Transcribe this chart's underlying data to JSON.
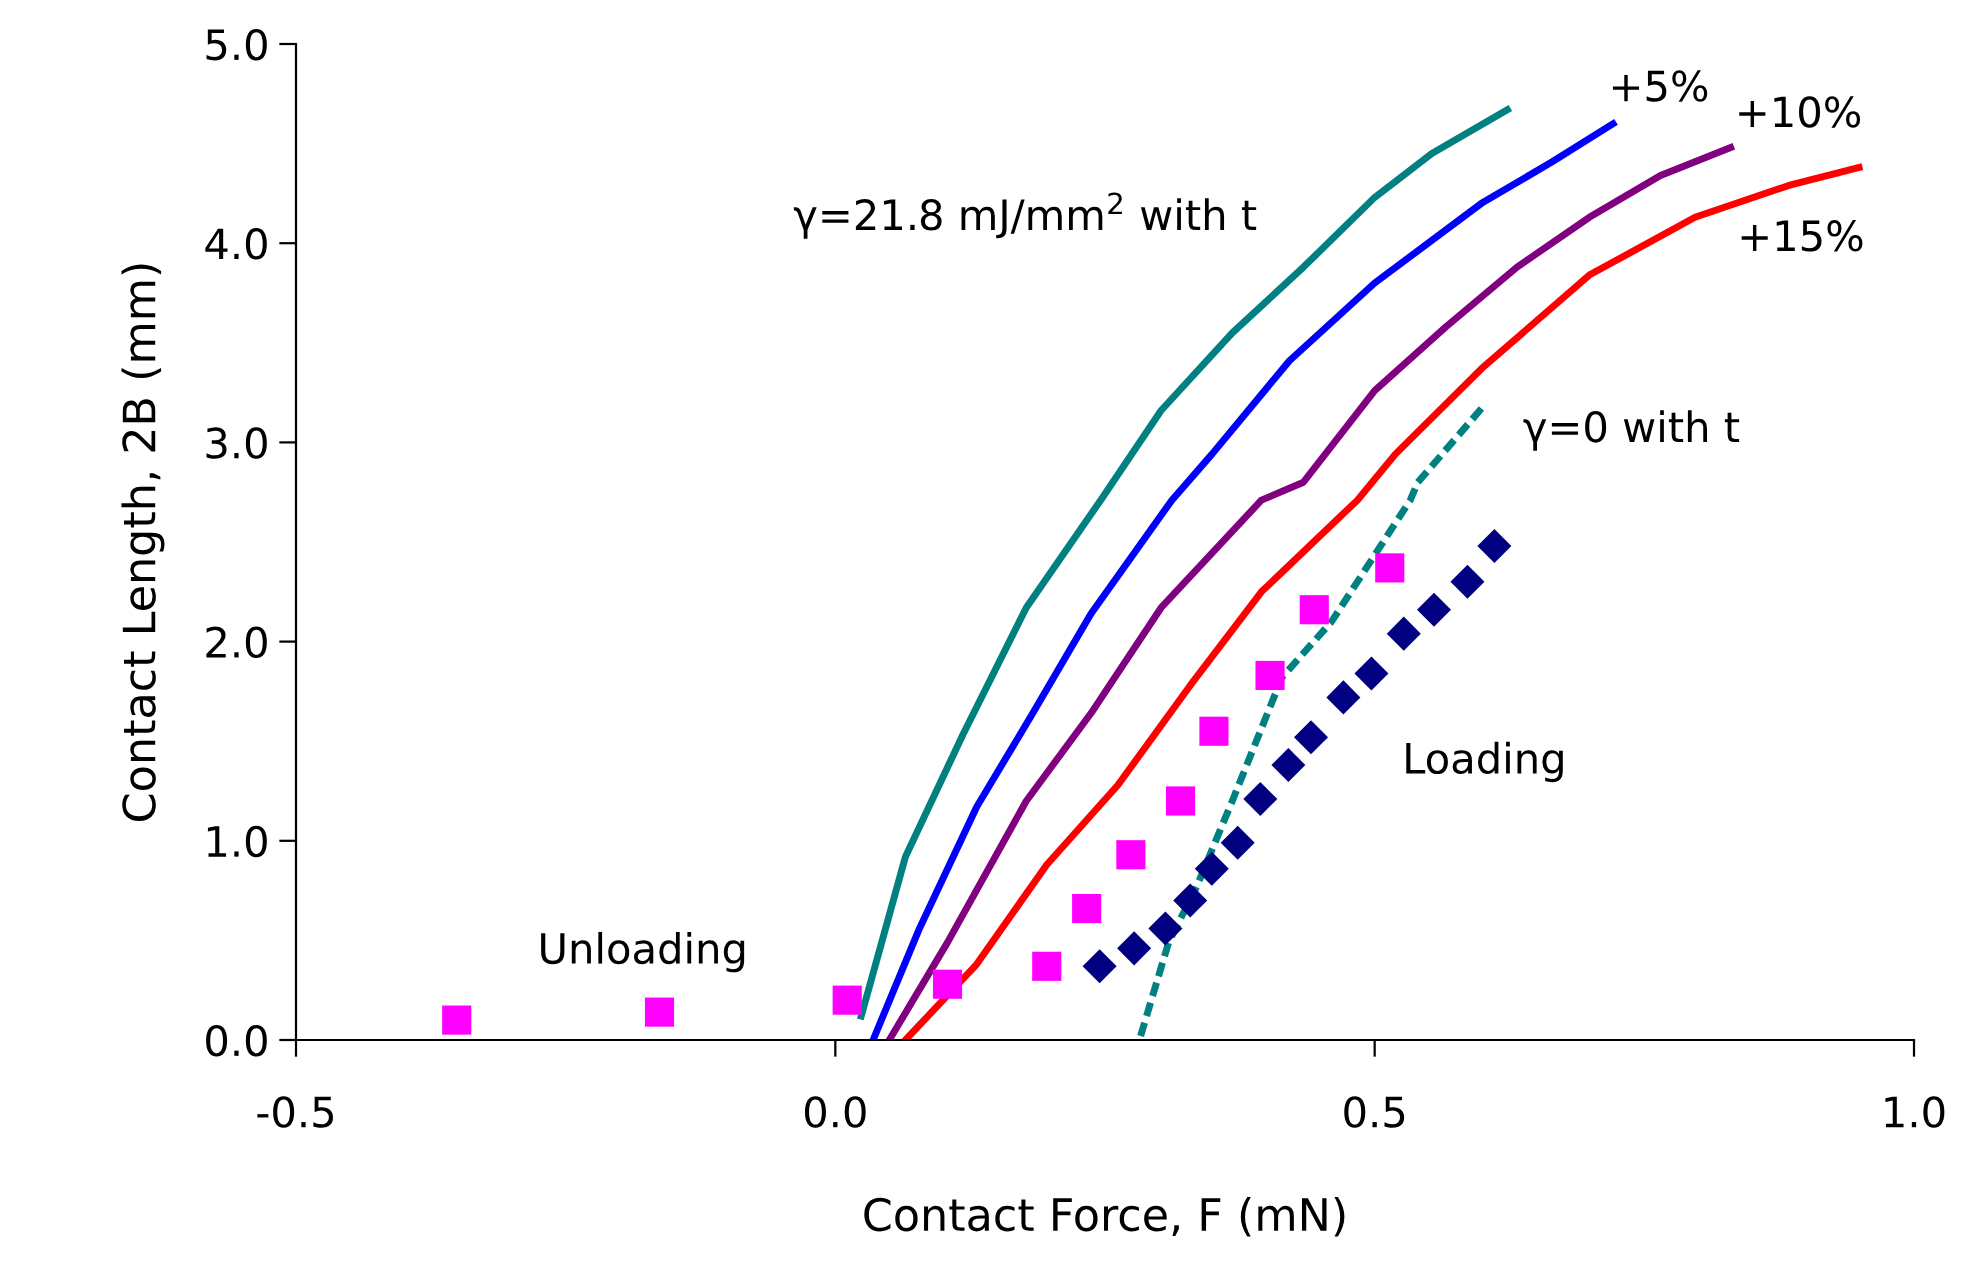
{
  "chart_data": {
    "type": "line",
    "xlabel": "Contact Force, F (mN)",
    "ylabel": "Contact Length, 2B (mm)",
    "xlim": [
      -0.5,
      1.0
    ],
    "xticks": [
      {
        "value": -0.5,
        "label": "-0.5"
      },
      {
        "value": 0,
        "label": "0.0"
      },
      {
        "value": 0.5,
        "label": "0.5"
      },
      {
        "value": 1.0,
        "label": "1.0"
      }
    ],
    "ylim": [
      0,
      5
    ],
    "yticks": [
      {
        "value": 0,
        "label": "0.0"
      },
      {
        "value": 1,
        "label": "1.0"
      },
      {
        "value": 2,
        "label": "2.0"
      },
      {
        "value": 3,
        "label": "3.0"
      },
      {
        "value": 4,
        "label": "4.0"
      },
      {
        "value": 5,
        "label": "5.0"
      }
    ],
    "grid": false,
    "legend": false,
    "series": [
      {
        "name": "γ=21.8 mJ/mm$^{2}$ with t",
        "color": "#008080",
        "line_style": "solid",
        "x": [
          0.024,
          0.065,
          0.118,
          0.177,
          0.246,
          0.302,
          0.368,
          0.434,
          0.5,
          0.553,
          0.623
        ],
        "values": [
          0.12,
          0.92,
          1.53,
          2.17,
          2.71,
          3.16,
          3.55,
          3.88,
          4.23,
          4.45,
          4.67
        ]
      },
      {
        "name": "+5%",
        "color": "#0000ff",
        "line_style": "solid",
        "x": [
          0.035,
          0.078,
          0.131,
          0.183,
          0.237,
          0.312,
          0.349,
          0.421,
          0.5,
          0.599,
          0.665,
          0.721
        ],
        "values": [
          0.0,
          0.56,
          1.17,
          1.64,
          2.14,
          2.71,
          2.94,
          3.41,
          3.8,
          4.2,
          4.41,
          4.6
        ]
      },
      {
        "name": "+10%",
        "color": "#800080",
        "line_style": "solid",
        "x": [
          0.05,
          0.104,
          0.177,
          0.237,
          0.302,
          0.395,
          0.434,
          0.5,
          0.566,
          0.632,
          0.699,
          0.765,
          0.83
        ],
        "values": [
          0.0,
          0.49,
          1.2,
          1.64,
          2.17,
          2.71,
          2.8,
          3.26,
          3.58,
          3.88,
          4.13,
          4.34,
          4.48
        ]
      },
      {
        "name": "+15%",
        "color": "#ff0000",
        "line_style": "solid",
        "x": [
          0.065,
          0.131,
          0.196,
          0.262,
          0.329,
          0.395,
          0.484,
          0.519,
          0.599,
          0.699,
          0.797,
          0.884,
          0.949
        ],
        "values": [
          0.0,
          0.38,
          0.88,
          1.28,
          1.78,
          2.25,
          2.71,
          2.94,
          3.37,
          3.84,
          4.13,
          4.29,
          4.38
        ]
      },
      {
        "name": "γ=0 with t",
        "color": "#008080",
        "line_style": "dashed",
        "x": [
          0.283,
          0.309,
          0.335,
          0.368,
          0.414,
          0.46,
          0.533,
          0.54,
          0.599
        ],
        "values": [
          0.02,
          0.49,
          0.77,
          1.2,
          1.82,
          2.1,
          2.71,
          2.8,
          3.17
        ]
      },
      {
        "name": "Loading",
        "type": "scatter",
        "color": "#000080",
        "marker": "diamond",
        "x": [
          0.245,
          0.277,
          0.306,
          0.329,
          0.349,
          0.373,
          0.394,
          0.42,
          0.441,
          0.471,
          0.497,
          0.527,
          0.555,
          0.586,
          0.611
        ],
        "values": [
          0.37,
          0.46,
          0.56,
          0.7,
          0.86,
          0.99,
          1.21,
          1.38,
          1.52,
          1.72,
          1.84,
          2.04,
          2.16,
          2.3,
          2.48
        ]
      },
      {
        "name": "Unloading",
        "type": "scatter",
        "color": "#ff00ff",
        "marker": "square",
        "x": [
          -0.351,
          -0.163,
          0.011,
          0.104,
          0.196,
          0.233,
          0.274,
          0.32,
          0.351,
          0.403,
          0.444,
          0.514
        ],
        "values": [
          0.1,
          0.14,
          0.2,
          0.28,
          0.37,
          0.66,
          0.93,
          1.2,
          1.55,
          1.83,
          2.16,
          2.37
        ]
      }
    ]
  }
}
